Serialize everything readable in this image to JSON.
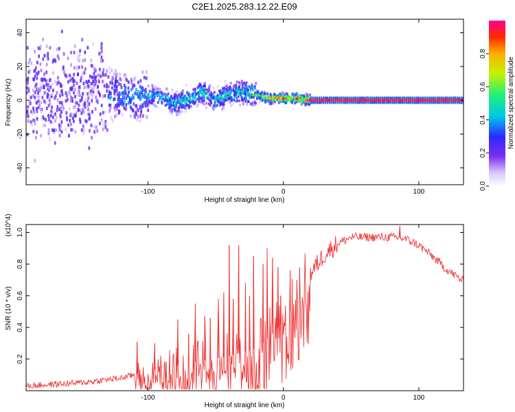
{
  "title": "C2E1.2025.283.12.22.E09",
  "chart_data": [
    {
      "type": "heatmap",
      "id": "spectrogram",
      "xlabel": "Height of straight line (km)",
      "ylabel": "Frequency (Hz)",
      "xlim": [
        -190,
        133
      ],
      "ylim": [
        -50,
        48
      ],
      "xticks": [
        -100,
        0,
        100
      ],
      "yticks": [
        -40,
        -20,
        0,
        20,
        40
      ],
      "xtick_labels": [
        "-100",
        "0",
        "100"
      ],
      "ytick_labels": [
        "-40",
        "-20",
        "0",
        "20",
        "40"
      ],
      "colorbar": {
        "label": "Normalized spectral amplitude",
        "range": [
          0,
          1
        ],
        "ticks": [
          0.0,
          0.2,
          0.4,
          0.6,
          0.8
        ],
        "tick_labels": [
          "0.0",
          "0.2",
          "0.4",
          "0.6",
          "0.8"
        ]
      },
      "ridge": [
        [
          -150,
          4,
          0.3
        ],
        [
          -140,
          5,
          0.35
        ],
        [
          -130,
          4,
          0.38
        ],
        [
          -120,
          3,
          0.4
        ],
        [
          -110,
          2,
          0.4
        ],
        [
          -100,
          3,
          0.42
        ],
        [
          -90,
          1,
          0.45
        ],
        [
          -80,
          -2,
          0.5
        ],
        [
          -70,
          1,
          0.5
        ],
        [
          -60,
          5,
          0.48
        ],
        [
          -50,
          0,
          0.48
        ],
        [
          -40,
          4,
          0.5
        ],
        [
          -30,
          5,
          0.5
        ],
        [
          -20,
          3,
          0.6
        ],
        [
          -10,
          1,
          0.8
        ],
        [
          0,
          1,
          0.9
        ],
        [
          10,
          1,
          0.9
        ],
        [
          20,
          0,
          1.0
        ],
        [
          60,
          0,
          1.0
        ],
        [
          100,
          0,
          1.0
        ],
        [
          133,
          0,
          1.0
        ]
      ]
    },
    {
      "type": "line",
      "id": "snr",
      "xlabel": "Height of straight line (km)",
      "ylabel": "SNR (10 * v/v)",
      "y_multiplier": "(x10^4)",
      "xlim": [
        -190,
        133
      ],
      "ylim": [
        0,
        1.05
      ],
      "xticks": [
        -100,
        0,
        100
      ],
      "yticks": [
        0.2,
        0.4,
        0.6,
        0.8,
        1.0
      ],
      "xtick_labels": [
        "-100",
        "0",
        "100"
      ],
      "ytick_labels": [
        "0.2",
        "0.4",
        "0.6",
        "0.8",
        "1.0"
      ],
      "color": "#ee3333",
      "envelope": [
        [
          -190,
          0.03
        ],
        [
          -150,
          0.05
        ],
        [
          -120,
          0.08
        ],
        [
          -100,
          0.12
        ],
        [
          -80,
          0.16
        ],
        [
          -60,
          0.19
        ],
        [
          -40,
          0.22
        ],
        [
          -20,
          0.27
        ],
        [
          -10,
          0.34
        ],
        [
          0,
          0.44
        ],
        [
          10,
          0.58
        ],
        [
          20,
          0.74
        ],
        [
          30,
          0.86
        ],
        [
          40,
          0.93
        ],
        [
          50,
          0.97
        ],
        [
          60,
          0.97
        ],
        [
          70,
          0.97
        ],
        [
          80,
          0.97
        ],
        [
          90,
          0.96
        ],
        [
          100,
          0.92
        ],
        [
          110,
          0.85
        ],
        [
          120,
          0.77
        ],
        [
          133,
          0.69
        ]
      ],
      "spikes": [
        [
          -108,
          0.31
        ],
        [
          -95,
          0.3
        ],
        [
          -78,
          0.45
        ],
        [
          -70,
          0.36
        ],
        [
          -65,
          0.55
        ],
        [
          -58,
          0.47
        ],
        [
          -54,
          0.46
        ],
        [
          -48,
          0.58
        ],
        [
          -44,
          0.62
        ],
        [
          -40,
          0.92
        ],
        [
          -37,
          0.58
        ],
        [
          -33,
          0.92
        ],
        [
          -28,
          0.68
        ],
        [
          -25,
          0.6
        ],
        [
          -22,
          0.85
        ],
        [
          -15,
          0.8
        ],
        [
          -12,
          0.9
        ],
        [
          -8,
          0.84
        ],
        [
          -4,
          0.78
        ],
        [
          -2,
          0.6
        ],
        [
          5,
          0.76
        ],
        [
          10,
          0.7
        ],
        [
          12,
          0.78
        ],
        [
          86,
          1.04
        ]
      ]
    }
  ]
}
